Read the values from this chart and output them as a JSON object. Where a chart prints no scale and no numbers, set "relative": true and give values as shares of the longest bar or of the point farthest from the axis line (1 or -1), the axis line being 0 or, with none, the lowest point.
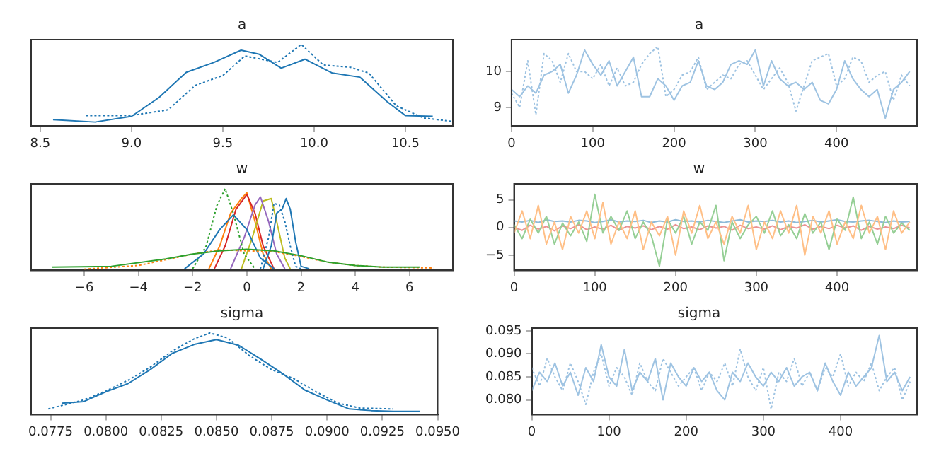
{
  "chart_data": [
    {
      "type": "line",
      "title": "a",
      "relative": true,
      "tick_labels": "x",
      "grid": false,
      "legend": false,
      "marker": "none",
      "xlim": [
        8.45,
        10.76
      ],
      "xticks": [
        8.5,
        {
          "value": 9,
          "label": "9.0"
        },
        9.5,
        {
          "value": 10,
          "label": "10.0"
        },
        10.5
      ],
      "series": [
        {
          "color": "#1f77b4",
          "line_style": "solid",
          "x": [
            8.57,
            8.8,
            9.0,
            9.15,
            9.3,
            9.45,
            9.6,
            9.7,
            9.82,
            9.95,
            10.1,
            10.25,
            10.4,
            10.5,
            10.65
          ],
          "values": [
            0.08,
            0.05,
            0.12,
            0.35,
            0.66,
            0.78,
            0.93,
            0.88,
            0.71,
            0.82,
            0.65,
            0.6,
            0.3,
            0.13,
            0.12
          ]
        },
        {
          "color": "#1f77b4",
          "line_style": "dotted",
          "x": [
            8.75,
            9.0,
            9.2,
            9.35,
            9.5,
            9.62,
            9.8,
            9.93,
            10.05,
            10.2,
            10.3,
            10.45,
            10.6,
            10.75
          ],
          "values": [
            0.13,
            0.13,
            0.2,
            0.5,
            0.62,
            0.86,
            0.78,
            1.0,
            0.75,
            0.72,
            0.65,
            0.25,
            0.1,
            0.06
          ]
        }
      ]
    },
    {
      "type": "line",
      "title": "a",
      "grid": false,
      "legend": false,
      "marker": "none",
      "xlim": [
        0,
        499
      ],
      "xticks": [
        0,
        100,
        200,
        300,
        400
      ],
      "ylim": [
        8.48,
        10.89
      ],
      "yticks": [
        9,
        10
      ],
      "x": [
        0,
        10,
        20,
        30,
        40,
        50,
        60,
        70,
        80,
        90,
        100,
        110,
        120,
        130,
        140,
        150,
        160,
        170,
        180,
        190,
        200,
        210,
        220,
        230,
        240,
        250,
        260,
        270,
        280,
        290,
        300,
        310,
        320,
        330,
        340,
        350,
        360,
        370,
        380,
        390,
        400,
        410,
        420,
        430,
        440,
        450,
        460,
        470,
        480,
        490
      ],
      "series": [
        {
          "color": "#9ec3e2",
          "line_style": "solid",
          "values": [
            9.5,
            9.3,
            9.6,
            9.4,
            9.9,
            10.0,
            10.2,
            9.4,
            9.9,
            10.6,
            10.2,
            9.9,
            10.3,
            9.6,
            10.0,
            10.4,
            9.3,
            9.3,
            9.8,
            9.6,
            9.2,
            9.6,
            9.7,
            10.3,
            9.6,
            9.5,
            9.7,
            10.2,
            10.3,
            10.2,
            10.6,
            9.6,
            10.3,
            9.8,
            9.6,
            9.7,
            9.5,
            9.7,
            9.2,
            9.1,
            9.5,
            10.3,
            9.8,
            9.5,
            9.3,
            9.5,
            8.7,
            9.5,
            9.7,
            10.0
          ]
        },
        {
          "color": "#9ec3e2",
          "line_style": "dotted",
          "values": [
            9.4,
            9.0,
            10.3,
            8.8,
            10.5,
            10.3,
            9.7,
            10.5,
            10.0,
            10.0,
            9.8,
            10.2,
            9.6,
            10.1,
            9.6,
            9.7,
            10.2,
            10.5,
            10.7,
            9.3,
            9.5,
            9.9,
            10.0,
            10.4,
            9.5,
            9.7,
            9.9,
            9.8,
            10.2,
            10.3,
            9.9,
            9.5,
            9.8,
            10.1,
            9.7,
            8.9,
            9.6,
            10.3,
            10.4,
            10.5,
            9.6,
            9.8,
            10.4,
            10.3,
            9.7,
            9.9,
            10.0,
            9.2,
            9.9,
            9.6
          ]
        }
      ]
    },
    {
      "type": "line",
      "title": "w",
      "relative": true,
      "tick_labels": "x",
      "grid": false,
      "legend": false,
      "marker": "none",
      "xlim": [
        -7.96,
        7.6
      ],
      "xticks": [
        {
          "value": -6,
          "label": "−6"
        },
        {
          "value": -4,
          "label": "−4"
        },
        {
          "value": -2,
          "label": "−2"
        },
        0,
        2,
        4,
        6
      ],
      "series": [
        {
          "color": "#2ca02c",
          "line_style": "solid",
          "x": [
            -7.2,
            -5,
            -3,
            -2,
            -1,
            0,
            1,
            2,
            3,
            4,
            5,
            6.4
          ],
          "values": [
            0.04,
            0.05,
            0.14,
            0.2,
            0.24,
            0.26,
            0.24,
            0.18,
            0.1,
            0.06,
            0.04,
            0.04
          ]
        },
        {
          "color": "#ff7f0e",
          "line_style": "dotted",
          "x": [
            -6,
            -4,
            -3,
            -2,
            -1,
            0,
            1,
            2,
            3,
            4,
            5,
            6.9
          ],
          "values": [
            0.015,
            0.06,
            0.13,
            0.2,
            0.25,
            0.24,
            0.23,
            0.17,
            0.1,
            0.06,
            0.04,
            0.03
          ]
        },
        {
          "color": "#1f77b4",
          "line_style": "solid",
          "x": [
            0.6,
            0.9,
            1.1,
            1.3,
            1.45,
            1.6,
            1.8,
            2.0,
            2.3
          ],
          "values": [
            0.02,
            0.3,
            0.7,
            0.75,
            0.88,
            0.75,
            0.35,
            0.05,
            0.02
          ]
        },
        {
          "color": "#1f77b4",
          "line_style": "dotted",
          "x": [
            0.5,
            0.8,
            1.0,
            1.2,
            1.4,
            1.6,
            1.8,
            2.0
          ],
          "values": [
            0.02,
            0.4,
            0.82,
            0.8,
            0.6,
            0.3,
            0.05,
            0.02
          ]
        },
        {
          "color": "#1f77b4",
          "line_style": "solid",
          "x": [
            -2.3,
            -1.6,
            -1.0,
            -0.5,
            0,
            0.5,
            1.0
          ],
          "values": [
            0.02,
            0.2,
            0.5,
            0.68,
            0.5,
            0.15,
            0.02
          ]
        },
        {
          "color": "#2ca02c",
          "line_style": "dotted",
          "x": [
            -2.0,
            -1.5,
            -1.1,
            -0.8,
            -0.5,
            -0.1,
            0.3
          ],
          "values": [
            0.02,
            0.3,
            0.8,
            1.0,
            0.7,
            0.2,
            0.02
          ]
        },
        {
          "color": "#9467bd",
          "line_style": "solid",
          "x": [
            -0.6,
            -0.1,
            0.3,
            0.5,
            0.8,
            1.1,
            1.4
          ],
          "values": [
            0.02,
            0.4,
            0.8,
            0.9,
            0.6,
            0.2,
            0.02
          ]
        },
        {
          "color": "#bcbd22",
          "line_style": "solid",
          "x": [
            -0.2,
            0.2,
            0.6,
            0.9,
            1.1,
            1.4,
            1.6
          ],
          "values": [
            0.02,
            0.4,
            0.85,
            0.88,
            0.6,
            0.15,
            0.02
          ]
        },
        {
          "color": "#d62728",
          "line_style": "solid",
          "x": [
            -1.2,
            -0.8,
            -0.4,
            0,
            0.3,
            0.6,
            1.0
          ],
          "values": [
            0.02,
            0.3,
            0.75,
            0.93,
            0.7,
            0.3,
            0.02
          ]
        },
        {
          "color": "#ff7f0e",
          "line_style": "solid",
          "x": [
            -1.4,
            -1.0,
            -0.6,
            -0.2,
            0,
            0.3,
            0.6,
            0.9
          ],
          "values": [
            0.02,
            0.3,
            0.7,
            0.88,
            0.95,
            0.6,
            0.2,
            0.02
          ]
        }
      ]
    },
    {
      "type": "line",
      "title": "w",
      "grid": false,
      "legend": false,
      "marker": "none",
      "xlim": [
        0,
        499
      ],
      "xticks": [
        0,
        100,
        200,
        300,
        400
      ],
      "ylim": [
        -7.75,
        7.9
      ],
      "yticks": [
        {
          "value": -5,
          "label": "−5"
        },
        0,
        5
      ],
      "x": [
        0,
        10,
        20,
        30,
        40,
        50,
        60,
        70,
        80,
        90,
        100,
        110,
        120,
        130,
        140,
        150,
        160,
        170,
        180,
        190,
        200,
        210,
        220,
        230,
        240,
        250,
        260,
        270,
        280,
        290,
        300,
        310,
        320,
        330,
        340,
        350,
        360,
        370,
        380,
        390,
        400,
        410,
        420,
        430,
        440,
        450,
        460,
        470,
        480,
        490
      ],
      "series": [
        {
          "color": "#ffbf86",
          "line_style": "solid",
          "values": [
            -1,
            3,
            -2,
            4,
            -3,
            1,
            -4,
            2,
            -1,
            3,
            -2,
            4.5,
            -3,
            1,
            -2,
            3,
            -4,
            1,
            -1.5,
            2,
            -5,
            3,
            -1,
            4,
            -2,
            1,
            -3,
            2,
            -1,
            4,
            -4,
            1,
            -2,
            3,
            -1,
            4,
            -5,
            2,
            -1,
            3,
            -3,
            1,
            -2,
            4,
            -1,
            2,
            -4,
            3,
            -1,
            1
          ]
        },
        {
          "color": "#95cf95",
          "line_style": "solid",
          "values": [
            0.5,
            -2,
            1.5,
            -1,
            2,
            -3,
            0.8,
            -1.5,
            1,
            -2.5,
            6,
            -1,
            2,
            -0.5,
            3,
            -2,
            1,
            -1.5,
            -7,
            1.5,
            -1,
            2,
            -3,
            1,
            -0.5,
            4,
            -6,
            1,
            -2,
            0.5,
            2,
            -1,
            3,
            -1.5,
            0.5,
            -2,
            2.5,
            -1,
            1,
            -4,
            1.5,
            -0.5,
            5.5,
            -2,
            1,
            -3,
            2,
            -1,
            0.8,
            -0.5
          ]
        },
        {
          "color": "#8fbbd9",
          "line_style": "solid",
          "values": [
            1.2,
            1.0,
            1.3,
            0.9,
            1.4,
            1.1,
            1.2,
            1.0,
            1.3,
            1.2,
            0.9,
            1.1,
            1.4,
            1.0,
            1.2,
            1.1,
            1.3,
            0.9,
            1.2,
            1.0,
            1.4,
            1.1,
            1.2,
            1.0,
            1.3,
            1.1,
            0.9,
            1.2,
            1.4,
            1.0,
            1.2,
            1.1,
            1.3,
            1.0,
            1.2,
            0.9,
            1.1,
            1.3,
            1.0,
            1.2,
            1.4,
            1.1,
            1.0,
            1.2,
            1.3,
            1.1,
            0.9,
            1.2,
            1.0,
            1.1
          ]
        },
        {
          "color": "#eb9393",
          "line_style": "solid",
          "values": [
            0,
            -0.5,
            0.4,
            -0.3,
            0.2,
            -0.6,
            0.3,
            -0.2,
            0.5,
            -0.4,
            0.1,
            -0.3,
            0.4,
            -0.5,
            0.2,
            -0.1,
            0.3,
            -0.4,
            0.2,
            -0.3,
            0.5,
            -0.2,
            0.1,
            -0.4,
            0.3,
            -0.1,
            0.2,
            -0.5,
            0.4,
            -0.2,
            0.1,
            -0.3,
            0.3,
            -0.4,
            0.2,
            -0.1,
            0.5,
            -0.3,
            0.2,
            -0.2,
            0.4,
            -0.1,
            0.3,
            -0.5,
            0.2,
            -0.3,
            0.1,
            -0.2,
            0.4,
            -0.1
          ]
        }
      ]
    },
    {
      "type": "line",
      "title": "sigma",
      "relative": true,
      "tick_labels": "x",
      "grid": false,
      "legend": false,
      "marker": "none",
      "xlim": [
        0.07662,
        0.095
      ],
      "xticks": [
        0.0775,
        {
          "value": 0.08,
          "label": "0.0800"
        },
        0.0825,
        {
          "value": 0.085,
          "label": "0.0850"
        },
        0.0875,
        {
          "value": 0.09,
          "label": "0.0900"
        },
        0.0925,
        {
          "value": 0.095,
          "label": "0.0950"
        }
      ],
      "series": [
        {
          "color": "#1f77b4",
          "line_style": "solid",
          "x": [
            0.078,
            0.079,
            0.08,
            0.081,
            0.082,
            0.083,
            0.084,
            0.085,
            0.086,
            0.087,
            0.088,
            0.089,
            0.09,
            0.091,
            0.092,
            0.093,
            0.0942
          ],
          "values": [
            0.14,
            0.16,
            0.28,
            0.38,
            0.55,
            0.75,
            0.86,
            0.92,
            0.85,
            0.68,
            0.5,
            0.3,
            0.18,
            0.07,
            0.05,
            0.04,
            0.04
          ]
        },
        {
          "color": "#1f77b4",
          "line_style": "dotted",
          "x": [
            0.0774,
            0.079,
            0.08,
            0.081,
            0.082,
            0.083,
            0.084,
            0.0847,
            0.0855,
            0.0865,
            0.0875,
            0.0885,
            0.0895,
            0.0905,
            0.0915,
            0.093
          ],
          "values": [
            0.07,
            0.18,
            0.29,
            0.42,
            0.58,
            0.78,
            0.93,
            1.0,
            0.94,
            0.72,
            0.55,
            0.44,
            0.28,
            0.14,
            0.08,
            0.07
          ]
        }
      ]
    },
    {
      "type": "line",
      "title": "sigma",
      "grid": false,
      "legend": false,
      "marker": "none",
      "xlim": [
        0,
        499
      ],
      "xticks": [
        0,
        100,
        200,
        300,
        400
      ],
      "ylim": [
        0.0768,
        0.0956
      ],
      "yticks": [
        {
          "value": 0.08,
          "label": "0.080"
        },
        0.085,
        {
          "value": 0.09,
          "label": "0.090"
        },
        0.095
      ],
      "x": [
        0,
        10,
        20,
        30,
        40,
        50,
        60,
        70,
        80,
        90,
        100,
        110,
        120,
        130,
        140,
        150,
        160,
        170,
        180,
        190,
        200,
        210,
        220,
        230,
        240,
        250,
        260,
        270,
        280,
        290,
        300,
        310,
        320,
        330,
        340,
        350,
        360,
        370,
        380,
        390,
        400,
        410,
        420,
        430,
        440,
        450,
        460,
        470,
        480,
        490
      ],
      "series": [
        {
          "color": "#9ec3e2",
          "line_style": "solid",
          "values": [
            0.082,
            0.086,
            0.084,
            0.088,
            0.083,
            0.086,
            0.081,
            0.087,
            0.084,
            0.092,
            0.085,
            0.083,
            0.091,
            0.082,
            0.086,
            0.084,
            0.089,
            0.08,
            0.088,
            0.085,
            0.083,
            0.087,
            0.084,
            0.086,
            0.082,
            0.08,
            0.086,
            0.084,
            0.088,
            0.085,
            0.083,
            0.086,
            0.084,
            0.087,
            0.083,
            0.085,
            0.086,
            0.082,
            0.088,
            0.084,
            0.081,
            0.086,
            0.083,
            0.085,
            0.087,
            0.094,
            0.084,
            0.086,
            0.082,
            0.085
          ]
        },
        {
          "color": "#9ec3e2",
          "line_style": "dotted",
          "values": [
            0.087,
            0.083,
            0.089,
            0.085,
            0.082,
            0.088,
            0.084,
            0.079,
            0.086,
            0.09,
            0.083,
            0.087,
            0.085,
            0.081,
            0.088,
            0.084,
            0.082,
            0.089,
            0.086,
            0.083,
            0.085,
            0.087,
            0.082,
            0.086,
            0.084,
            0.088,
            0.083,
            0.091,
            0.085,
            0.082,
            0.087,
            0.078,
            0.086,
            0.084,
            0.089,
            0.083,
            0.086,
            0.082,
            0.087,
            0.085,
            0.09,
            0.083,
            0.086,
            0.084,
            0.088,
            0.082,
            0.085,
            0.087,
            0.08,
            0.084
          ]
        }
      ]
    }
  ]
}
